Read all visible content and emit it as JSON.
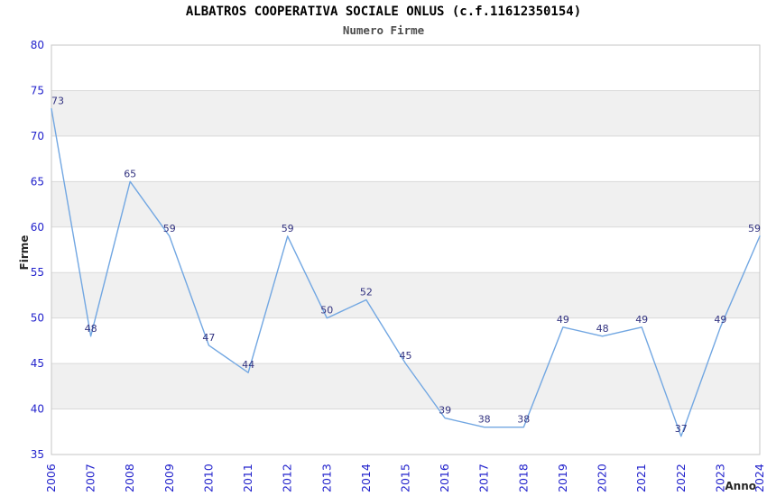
{
  "chart_data": {
    "type": "line",
    "title": "ALBATROS COOPERATIVA SOCIALE ONLUS (c.f.11612350154)",
    "subtitle": "Numero Firme",
    "xlabel": "Anno",
    "ylabel": "Firme",
    "categories": [
      "2006",
      "2007",
      "2008",
      "2009",
      "2010",
      "2011",
      "2012",
      "2013",
      "2014",
      "2015",
      "2016",
      "2017",
      "2018",
      "2019",
      "2020",
      "2021",
      "2022",
      "2023",
      "2024"
    ],
    "values": [
      73,
      48,
      65,
      59,
      47,
      44,
      59,
      50,
      52,
      45,
      39,
      38,
      38,
      49,
      48,
      49,
      37,
      49,
      59
    ],
    "ylim": [
      35,
      80
    ],
    "ytick_step": 5,
    "grid": "horizontal gridlines every 5 units, alternating gray bands",
    "legend_position": "none",
    "point_labels_visible": true,
    "colors": {
      "line": "#72a7e2",
      "tick_label": "#2222cc",
      "point_label": "#333380",
      "band": "#f0f0f0",
      "grid": "#d9d9d9",
      "border": "#c6c6c6",
      "title": "#000000",
      "subtitle": "#4d4d4d",
      "axis_title": "#262626",
      "background": "#ffffff"
    }
  }
}
